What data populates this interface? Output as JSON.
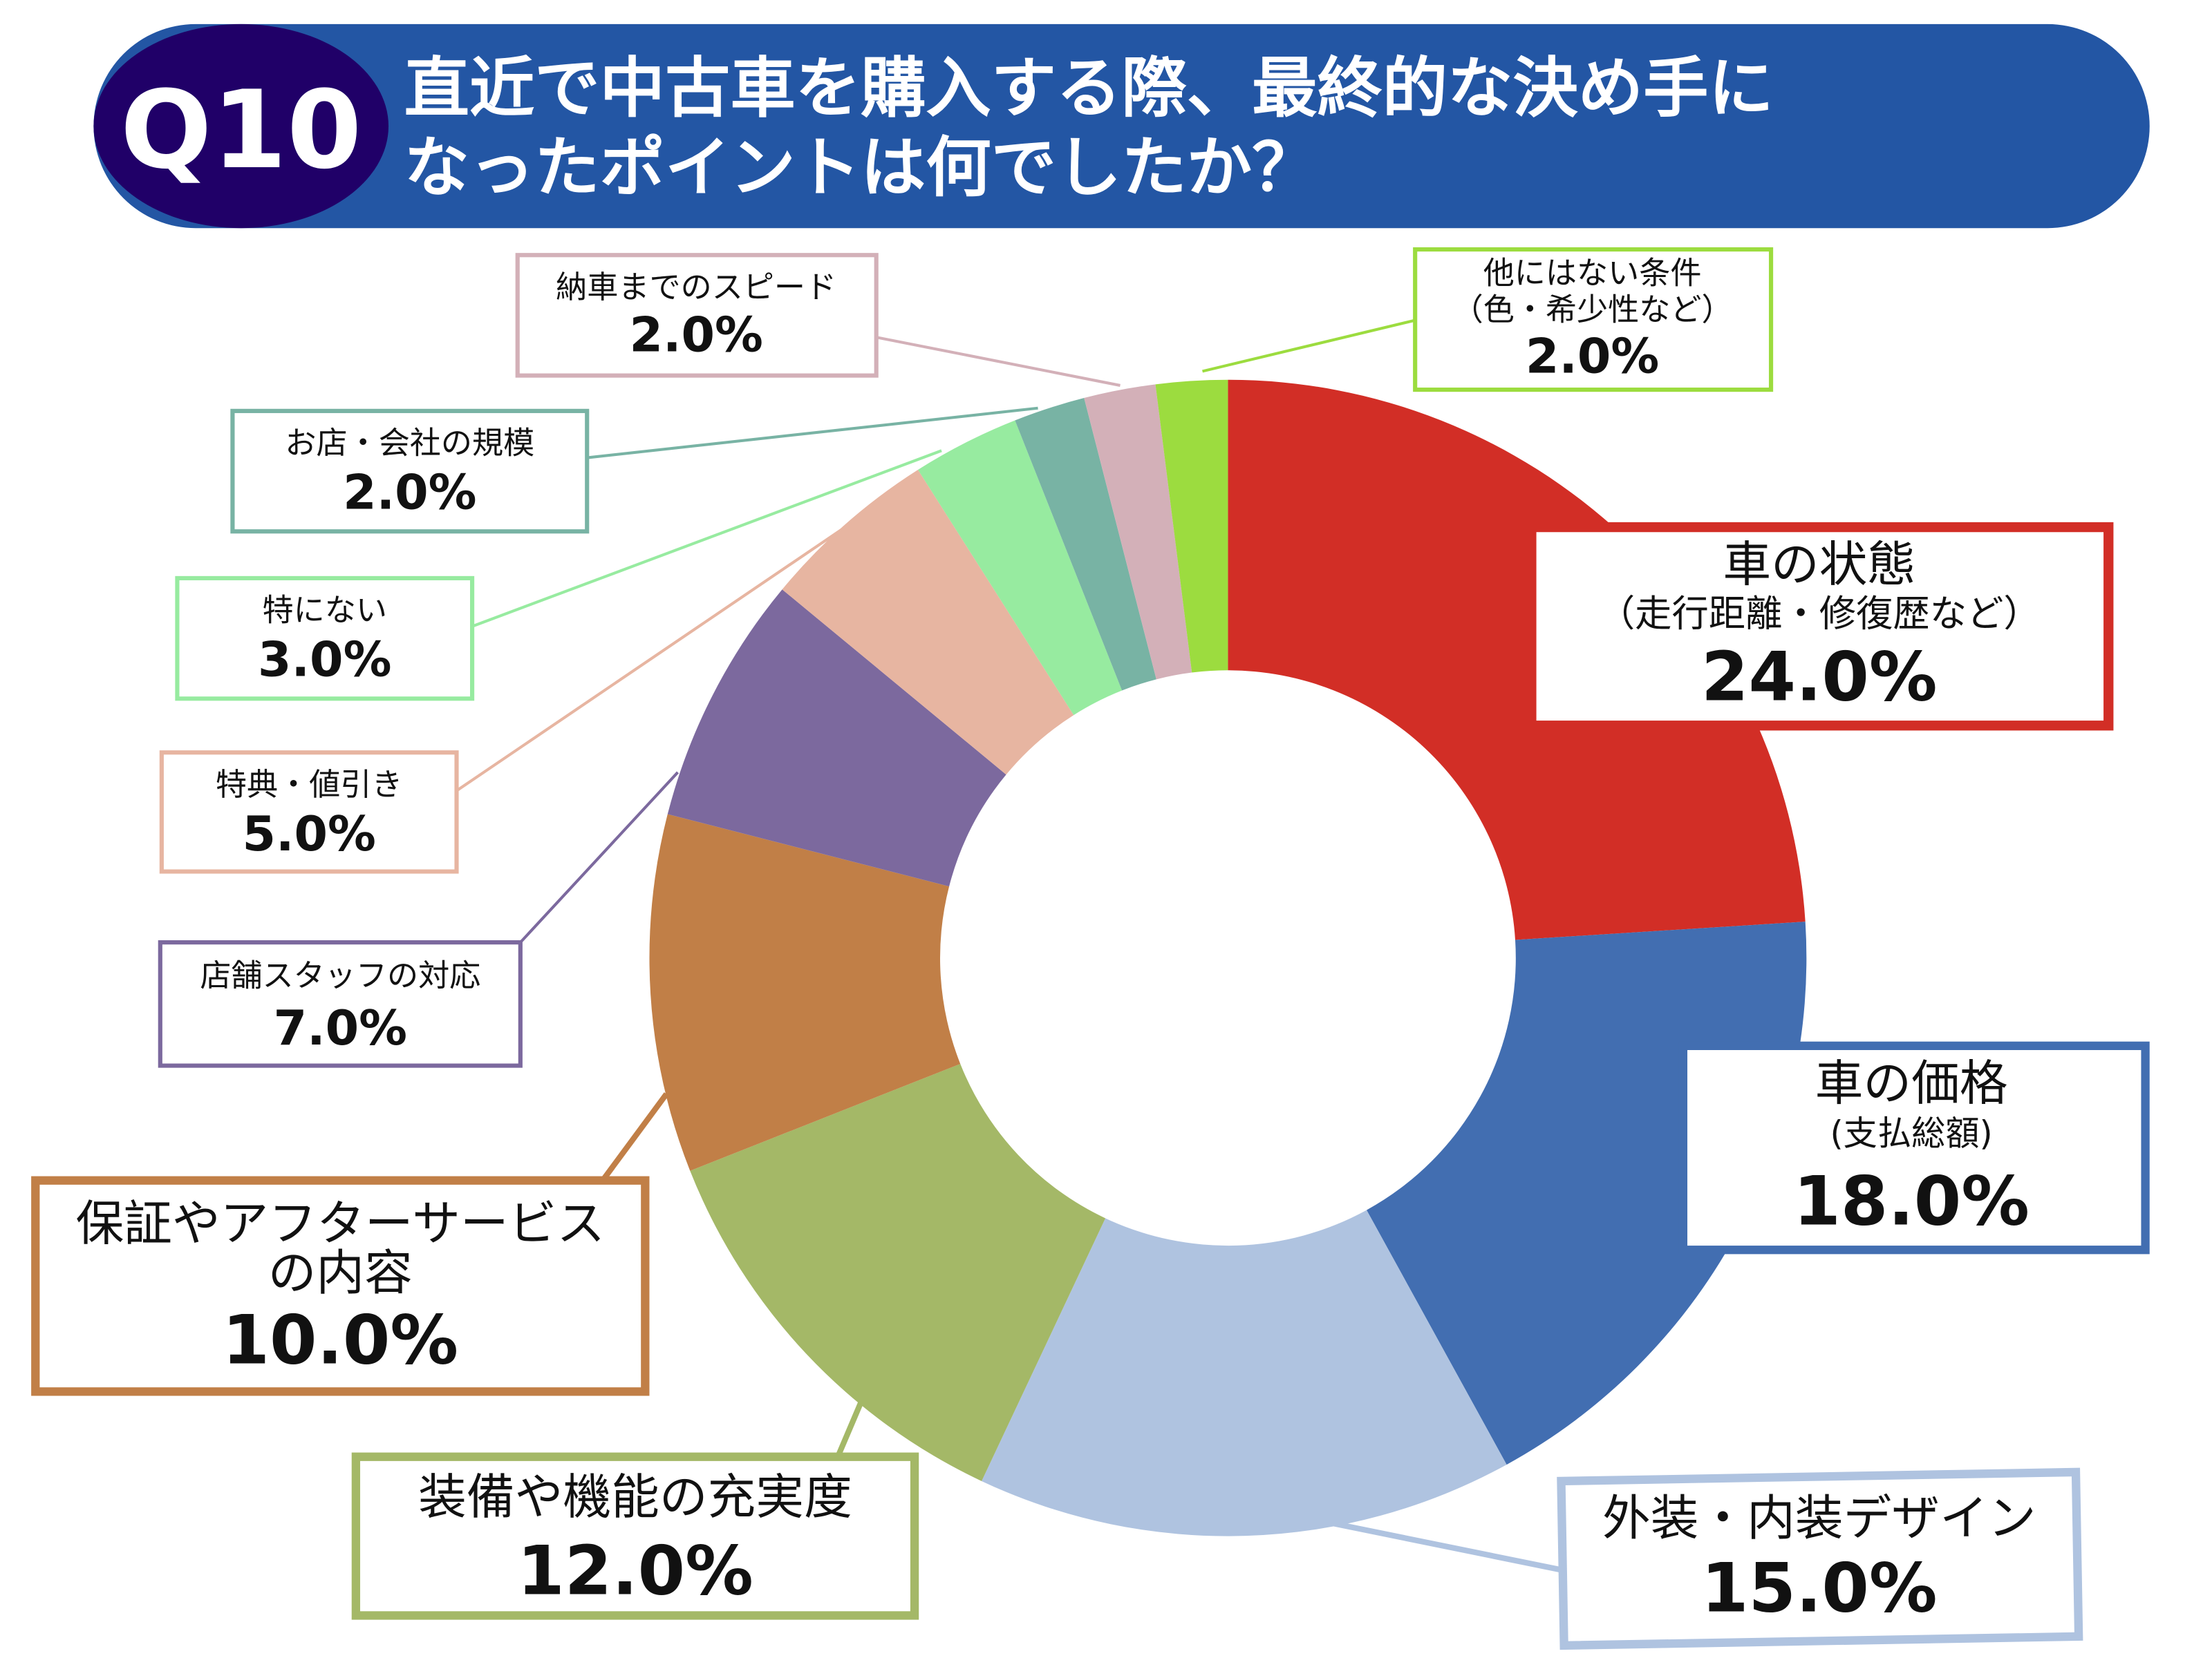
{
  "header": {
    "badge": "Q10",
    "title_line1": "直近で中古車を購入する際、最終的な決め手に",
    "title_line2": "なったポイントは何でしたか？",
    "badge_color": "#200068",
    "banner_color": "#2356A4"
  },
  "chart_data": {
    "type": "pie",
    "style": "donut",
    "start": "top, clockwise",
    "unit": "%",
    "slices": [
      {
        "label": "車の状態",
        "sublabel": "（走行距離・修復歴など）",
        "value": 24.0,
        "display": "24.0%",
        "color": "#D22E26"
      },
      {
        "label": "車の価格",
        "sublabel": "(支払総額)",
        "value": 18.0,
        "display": "18.0%",
        "color": "#426EB1"
      },
      {
        "label": "外装・内装デザイン",
        "value": 15.0,
        "display": "15.0%",
        "color": "#AFC3E0"
      },
      {
        "label": "装備や機能の充実度",
        "value": 12.0,
        "display": "12.0%",
        "color": "#A4B867"
      },
      {
        "label": "保証やアフターサービス",
        "label2": "の内容",
        "value": 10.0,
        "display": "10.0%",
        "color": "#C17F47"
      },
      {
        "label": "店舗スタッフの対応",
        "value": 7.0,
        "display": "7.0%",
        "color": "#7C699E"
      },
      {
        "label": "特典・値引き",
        "value": 5.0,
        "display": "5.0%",
        "color": "#E7B5A1"
      },
      {
        "label": "特にない",
        "value": 3.0,
        "display": "3.0%",
        "color": "#97EBA0"
      },
      {
        "label": "お店・会社の規模",
        "value": 2.0,
        "display": "2.0%",
        "color": "#78B3A4"
      },
      {
        "label": "納車までのスピード",
        "value": 2.0,
        "display": "2.0%",
        "color": "#D3B0B8"
      },
      {
        "label": "他にはない条件",
        "sublabel": "（色・希少性など）",
        "value": 2.0,
        "display": "2.0%",
        "color": "#9CDC3F"
      }
    ]
  }
}
